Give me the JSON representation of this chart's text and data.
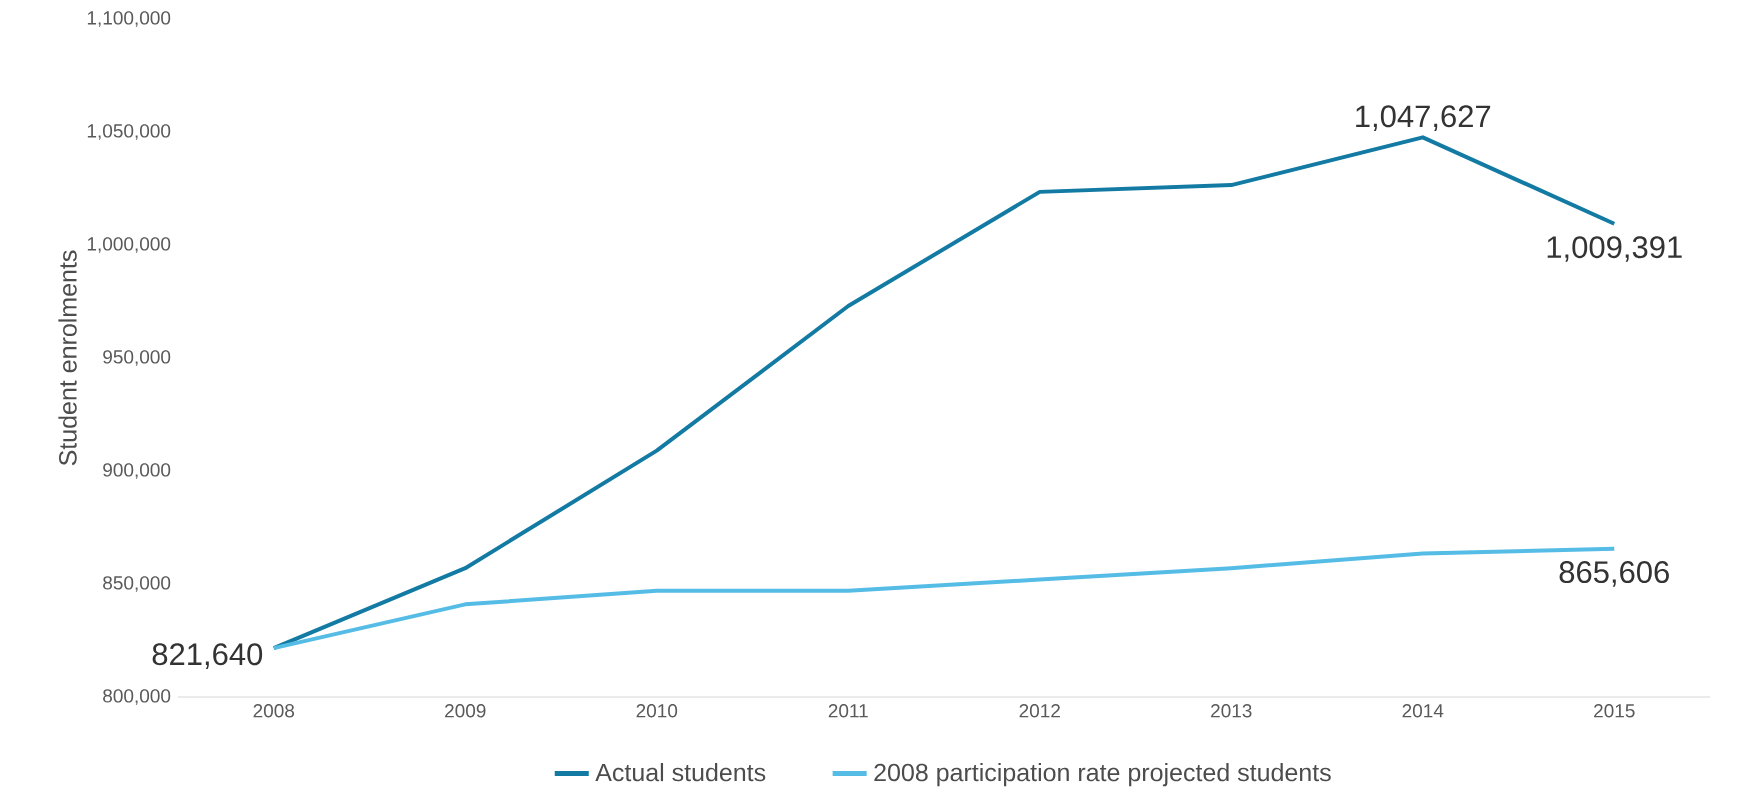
{
  "chart_data": {
    "type": "line",
    "ylabel": "Student enrolments",
    "categories": [
      "2008",
      "2009",
      "2010",
      "2011",
      "2012",
      "2013",
      "2014",
      "2015"
    ],
    "series": [
      {
        "name": "Actual students",
        "color": "#137ba3",
        "values": [
          821640,
          857000,
          909000,
          973000,
          1023500,
          1026500,
          1047627,
          1009391
        ],
        "value_labels": [
          "821,640",
          null,
          null,
          null,
          null,
          null,
          "1,047,627",
          "1,009,391"
        ]
      },
      {
        "name": "2008 participation rate projected students",
        "color": "#55bce6",
        "values": [
          821640,
          841000,
          847000,
          847000,
          852000,
          857000,
          863500,
          865606
        ],
        "value_labels": [
          null,
          null,
          null,
          null,
          null,
          null,
          null,
          "865,606"
        ]
      }
    ],
    "ylim": [
      800000,
      1100000
    ],
    "yticks": [
      {
        "value": 800000,
        "label": "800,000"
      },
      {
        "value": 850000,
        "label": "850,000"
      },
      {
        "value": 900000,
        "label": "900,000"
      },
      {
        "value": 950000,
        "label": "950,000"
      },
      {
        "value": 1000000,
        "label": "1,000,000"
      },
      {
        "value": 1050000,
        "label": "1,050,000"
      },
      {
        "value": 1100000,
        "label": "1,100,000"
      }
    ],
    "legend": "bottom",
    "marker": "none",
    "line_style": "solid",
    "grid": false
  }
}
